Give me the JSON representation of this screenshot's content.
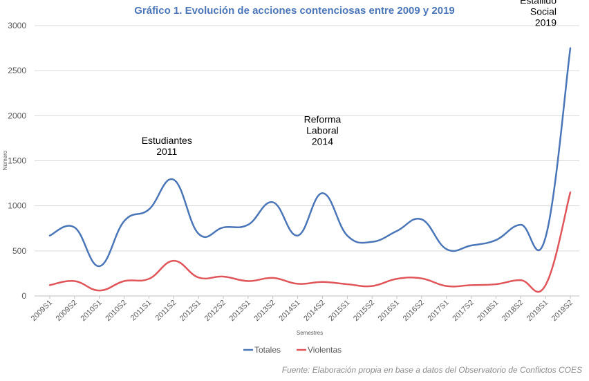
{
  "chart_data": {
    "type": "line",
    "title": "Gráfico 1. Evolución de acciones contenciosas entre 2009 y 2019",
    "xlabel": "Semestres",
    "ylabel": "Número",
    "ylim": [
      0,
      3000
    ],
    "yticks": [
      0,
      500,
      1000,
      1500,
      2000,
      2500,
      3000
    ],
    "grid": true,
    "legend_position": "bottom",
    "categories": [
      "2009S1",
      "2009S2",
      "2010S1",
      "2010S2",
      "2011S1",
      "2011S2",
      "2012S1",
      "2012S2",
      "2013S1",
      "2013S2",
      "2014S1",
      "2014S2",
      "2015S1",
      "2015S2",
      "2016S1",
      "2016S2",
      "2017S1",
      "2017S2",
      "2018S1",
      "2018S2",
      "2019S1",
      "2019S2"
    ],
    "series": [
      {
        "name": "Totales",
        "color": "#4a76b8",
        "values": [
          670,
          760,
          330,
          830,
          960,
          1290,
          690,
          760,
          790,
          1040,
          670,
          1140,
          670,
          600,
          720,
          850,
          520,
          560,
          620,
          790,
          650,
          2750
        ]
      },
      {
        "name": "Violentas",
        "color": "#e0555a",
        "values": [
          120,
          165,
          60,
          165,
          190,
          390,
          205,
          215,
          165,
          200,
          135,
          155,
          130,
          110,
          190,
          195,
          110,
          120,
          130,
          175,
          120,
          1150
        ]
      }
    ],
    "annotations": [
      {
        "lines": [
          "Estudiantes",
          "2011"
        ],
        "category": "2011S2",
        "value": 1290
      },
      {
        "lines": [
          "Reforma",
          "Laboral",
          "2014"
        ],
        "category": "2014S2",
        "value": 1140
      },
      {
        "lines": [
          "Estallido",
          "Social",
          "2019"
        ],
        "category": "2019S2",
        "value": 2750
      }
    ],
    "title_color": "#4a76b8"
  },
  "source": "Fuente: Elaboración propia en base a datos del Observatorio de Conflictos COES"
}
